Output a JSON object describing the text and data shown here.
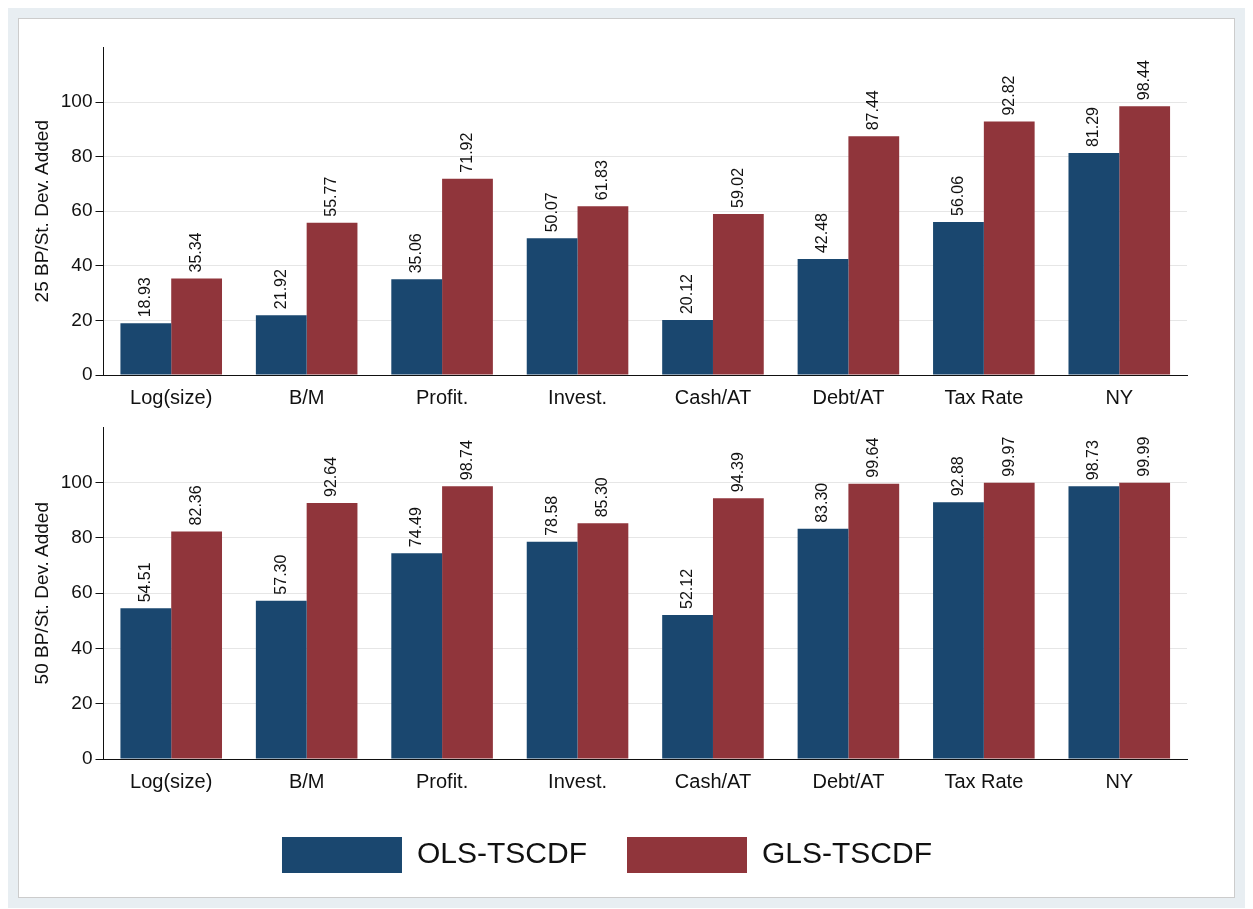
{
  "chart_data": [
    {
      "type": "bar",
      "ylabel": "25 BP/St. Dev. Added",
      "categories": [
        "Log(size)",
        "B/M",
        "Profit.",
        "Invest.",
        "Cash/AT",
        "Debt/AT",
        "Tax Rate",
        "NY"
      ],
      "ylim": [
        0,
        120
      ],
      "yticks": [
        0,
        20,
        40,
        60,
        80,
        100
      ],
      "grid": "y",
      "legend": false,
      "series": [
        {
          "color": "#1a476f",
          "values": [
            18.93,
            21.92,
            35.06,
            50.07,
            20.12,
            42.48,
            56.06,
            81.29
          ],
          "value_labels": [
            "18.93",
            "21.92",
            "35.06",
            "50.07",
            "20.12",
            "42.48",
            "56.06",
            "81.29"
          ]
        },
        {
          "color": "#90353b",
          "values": [
            35.34,
            55.77,
            71.92,
            61.83,
            59.02,
            87.44,
            92.82,
            98.44
          ],
          "value_labels": [
            "35.34",
            "55.77",
            "71.92",
            "61.83",
            "59.02",
            "87.44",
            "92.82",
            "98.44"
          ]
        }
      ]
    },
    {
      "type": "bar",
      "ylabel": "50 BP/St. Dev. Added",
      "categories": [
        "Log(size)",
        "B/M",
        "Profit.",
        "Invest.",
        "Cash/AT",
        "Debt/AT",
        "Tax Rate",
        "NY"
      ],
      "ylim": [
        0,
        120
      ],
      "yticks": [
        0,
        20,
        40,
        60,
        80,
        100
      ],
      "grid": "y",
      "legend": "bottom",
      "series": [
        {
          "name": "OLS-TSCDF",
          "color": "#1a476f",
          "values": [
            54.51,
            57.3,
            74.49,
            78.58,
            52.12,
            83.3,
            92.88,
            98.73
          ],
          "value_labels": [
            "54.51",
            "57.30",
            "74.49",
            "78.58",
            "52.12",
            "83.30",
            "92.88",
            "98.73"
          ]
        },
        {
          "name": "GLS-TSCDF",
          "color": "#90353b",
          "values": [
            82.36,
            92.64,
            98.74,
            85.3,
            94.39,
            99.64,
            99.97,
            99.99
          ],
          "value_labels": [
            "82.36",
            "92.64",
            "98.74",
            "85.30",
            "94.39",
            "99.64",
            "99.97",
            "99.99"
          ]
        }
      ]
    }
  ]
}
